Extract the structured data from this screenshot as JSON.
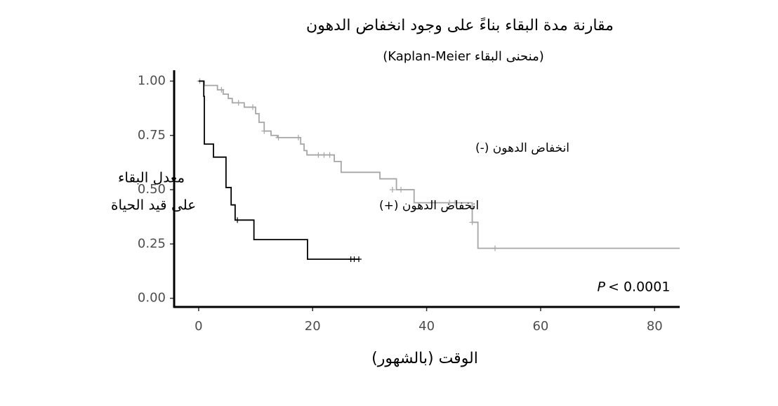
{
  "chart_data": {
    "type": "step",
    "title": "مقارنة مدة البقاء بناءً على وجود انخفاض الدهون",
    "subtitle": "(منحنى البقاء Kaplan-Meier)",
    "y_label": [
      "معدل البقاء",
      "على قيد الحياة"
    ],
    "x_label": "الوقت (بالشهور)",
    "p_value": [
      "P",
      "< 0.0001"
    ],
    "xlim": [
      -4.3,
      84.4
    ],
    "ylim": [
      -0.04,
      1.05
    ],
    "xticks": [
      0,
      20,
      40,
      60,
      80
    ],
    "yticks": [
      {
        "value": 0,
        "label": "0.00"
      },
      0.25,
      {
        "value": 0.5,
        "label": "0.50"
      },
      0.75,
      {
        "value": 1,
        "label": "1.00"
      }
    ],
    "series": [
      {
        "name": "انخفاض الدهون (-)",
        "color": "#a6a6a6",
        "x": [
          0,
          1,
          3.3,
          4.3,
          5.2,
          5.9,
          8.0,
          10.0,
          10.6,
          11.5,
          12.7,
          13.8,
          17.9,
          18.5,
          19.0,
          23.8,
          25.0,
          31.8,
          34.7,
          37.8,
          48.0,
          49.0,
          84.4
        ],
        "values": [
          1.0,
          0.98,
          0.96,
          0.94,
          0.92,
          0.9,
          0.88,
          0.85,
          0.81,
          0.77,
          0.75,
          0.74,
          0.71,
          0.68,
          0.66,
          0.63,
          0.58,
          0.55,
          0.5,
          0.44,
          0.35,
          0.23,
          0.23
        ],
        "censor_x": [
          0.2,
          4,
          7,
          9.5,
          11.5,
          14,
          17.5,
          21,
          22,
          23,
          34,
          35.5,
          44,
          45,
          48,
          52
        ],
        "censor_values": [
          1.0,
          0.96,
          0.9,
          0.88,
          0.77,
          0.74,
          0.74,
          0.66,
          0.66,
          0.66,
          0.5,
          0.5,
          0.44,
          0.44,
          0.35,
          0.23
        ]
      },
      {
        "name": "انخفاض الدهون (+)",
        "color": "#000000",
        "x": [
          0,
          0.9,
          1.0,
          2.6,
          4.8,
          5.7,
          6.4,
          9.7,
          19.1,
          28.2
        ],
        "values": [
          1.0,
          0.93,
          0.71,
          0.65,
          0.51,
          0.43,
          0.36,
          0.27,
          0.18,
          0.18
        ],
        "censor_x": [
          6.8,
          26.7,
          27.3,
          28.1
        ],
        "censor_values": [
          0.36,
          0.18,
          0.18,
          0.18
        ]
      }
    ]
  }
}
